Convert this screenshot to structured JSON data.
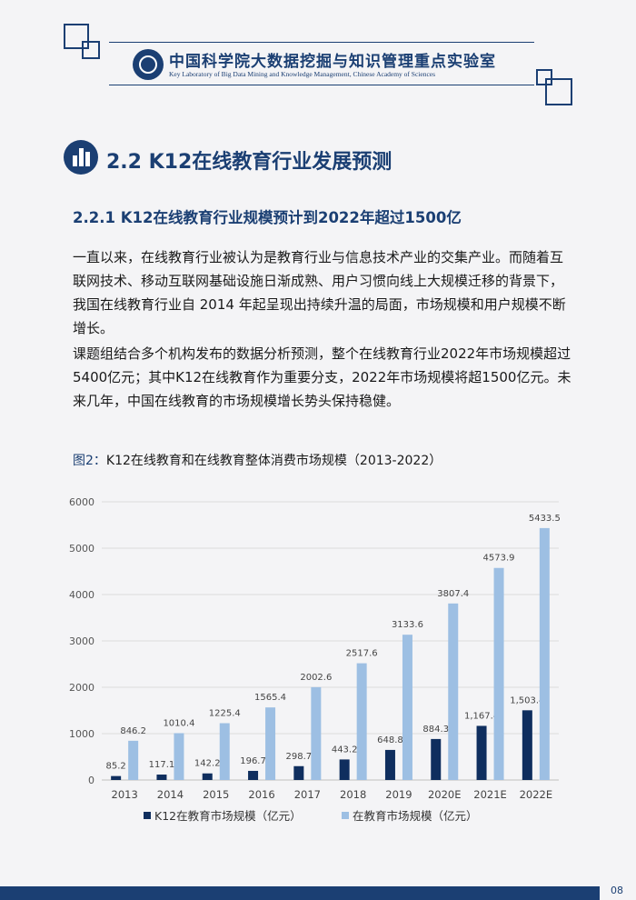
{
  "header": {
    "org_name_cn": "中国科学院大数据挖掘与知识管理重点实验室",
    "org_name_en": "Key Laboratory of Big Data Mining and Knowledge Management, Chinese Academy of Sciences"
  },
  "section": {
    "title": "2.2 K12在线教育行业发展预测",
    "icon": "bar-chart-icon"
  },
  "subsection": {
    "title": "2.2.1 K12在线教育行业规模预计到2022年超过1500亿"
  },
  "paragraphs": [
    "一直以来，在线教育行业被认为是教育行业与信息技术产业的交集产业。而随着互联网技术、移动互联网基础设施日渐成熟、用户习惯向线上大规模迁移的背景下，我国在线教育行业自 2014 年起呈现出持续升温的局面，市场规模和用户规模不断增长。",
    "课题组结合多个机构发布的数据分析预测，整个在线教育行业2022年市场规模超过5400亿元；其中K12在线教育作为重要分支，2022年市场规模将超1500亿元。未来几年，中国在线教育的市场规模增长势头保持稳健。"
  ],
  "figure": {
    "number": "图2：",
    "title": "K12在线教育和在线教育整体消费市场规模（2013-2022）"
  },
  "chart_data": {
    "type": "bar",
    "categories": [
      "2013",
      "2014",
      "2015",
      "2016",
      "2017",
      "2018",
      "2019",
      "2020E",
      "2021E",
      "2022E"
    ],
    "series": [
      {
        "name": "K12在教育市场规模（亿元）",
        "values": [
          85.2,
          117.1,
          142.2,
          196.7,
          298.7,
          443.2,
          648.8,
          884.3,
          1167.4,
          1503.4
        ],
        "labels": [
          "85.2",
          "117.1",
          "142.2",
          "196.7",
          "298.7",
          "443.2",
          "648.8",
          "884.3",
          "1,167.4",
          "1,503.4"
        ],
        "color": "#0f2e5e"
      },
      {
        "name": "在教育市场规模（亿元）",
        "values": [
          846.2,
          1010.4,
          1225.4,
          1565.4,
          2002.6,
          2517.6,
          3133.6,
          3807.4,
          4573.9,
          5433.5
        ],
        "labels": [
          "846.2",
          "1010.4",
          "1225.4",
          "1565.4",
          "2002.6",
          "2517.6",
          "3133.6",
          "3807.4",
          "4573.9",
          "5433.5"
        ],
        "color": "#9dbfe3"
      }
    ],
    "yticks": [
      "0",
      "1000",
      "2000",
      "3000",
      "4000",
      "5000",
      "6000"
    ],
    "ylim": [
      0,
      6000
    ],
    "grid": true,
    "legend_position": "bottom"
  },
  "footer": {
    "page_number": "08"
  }
}
